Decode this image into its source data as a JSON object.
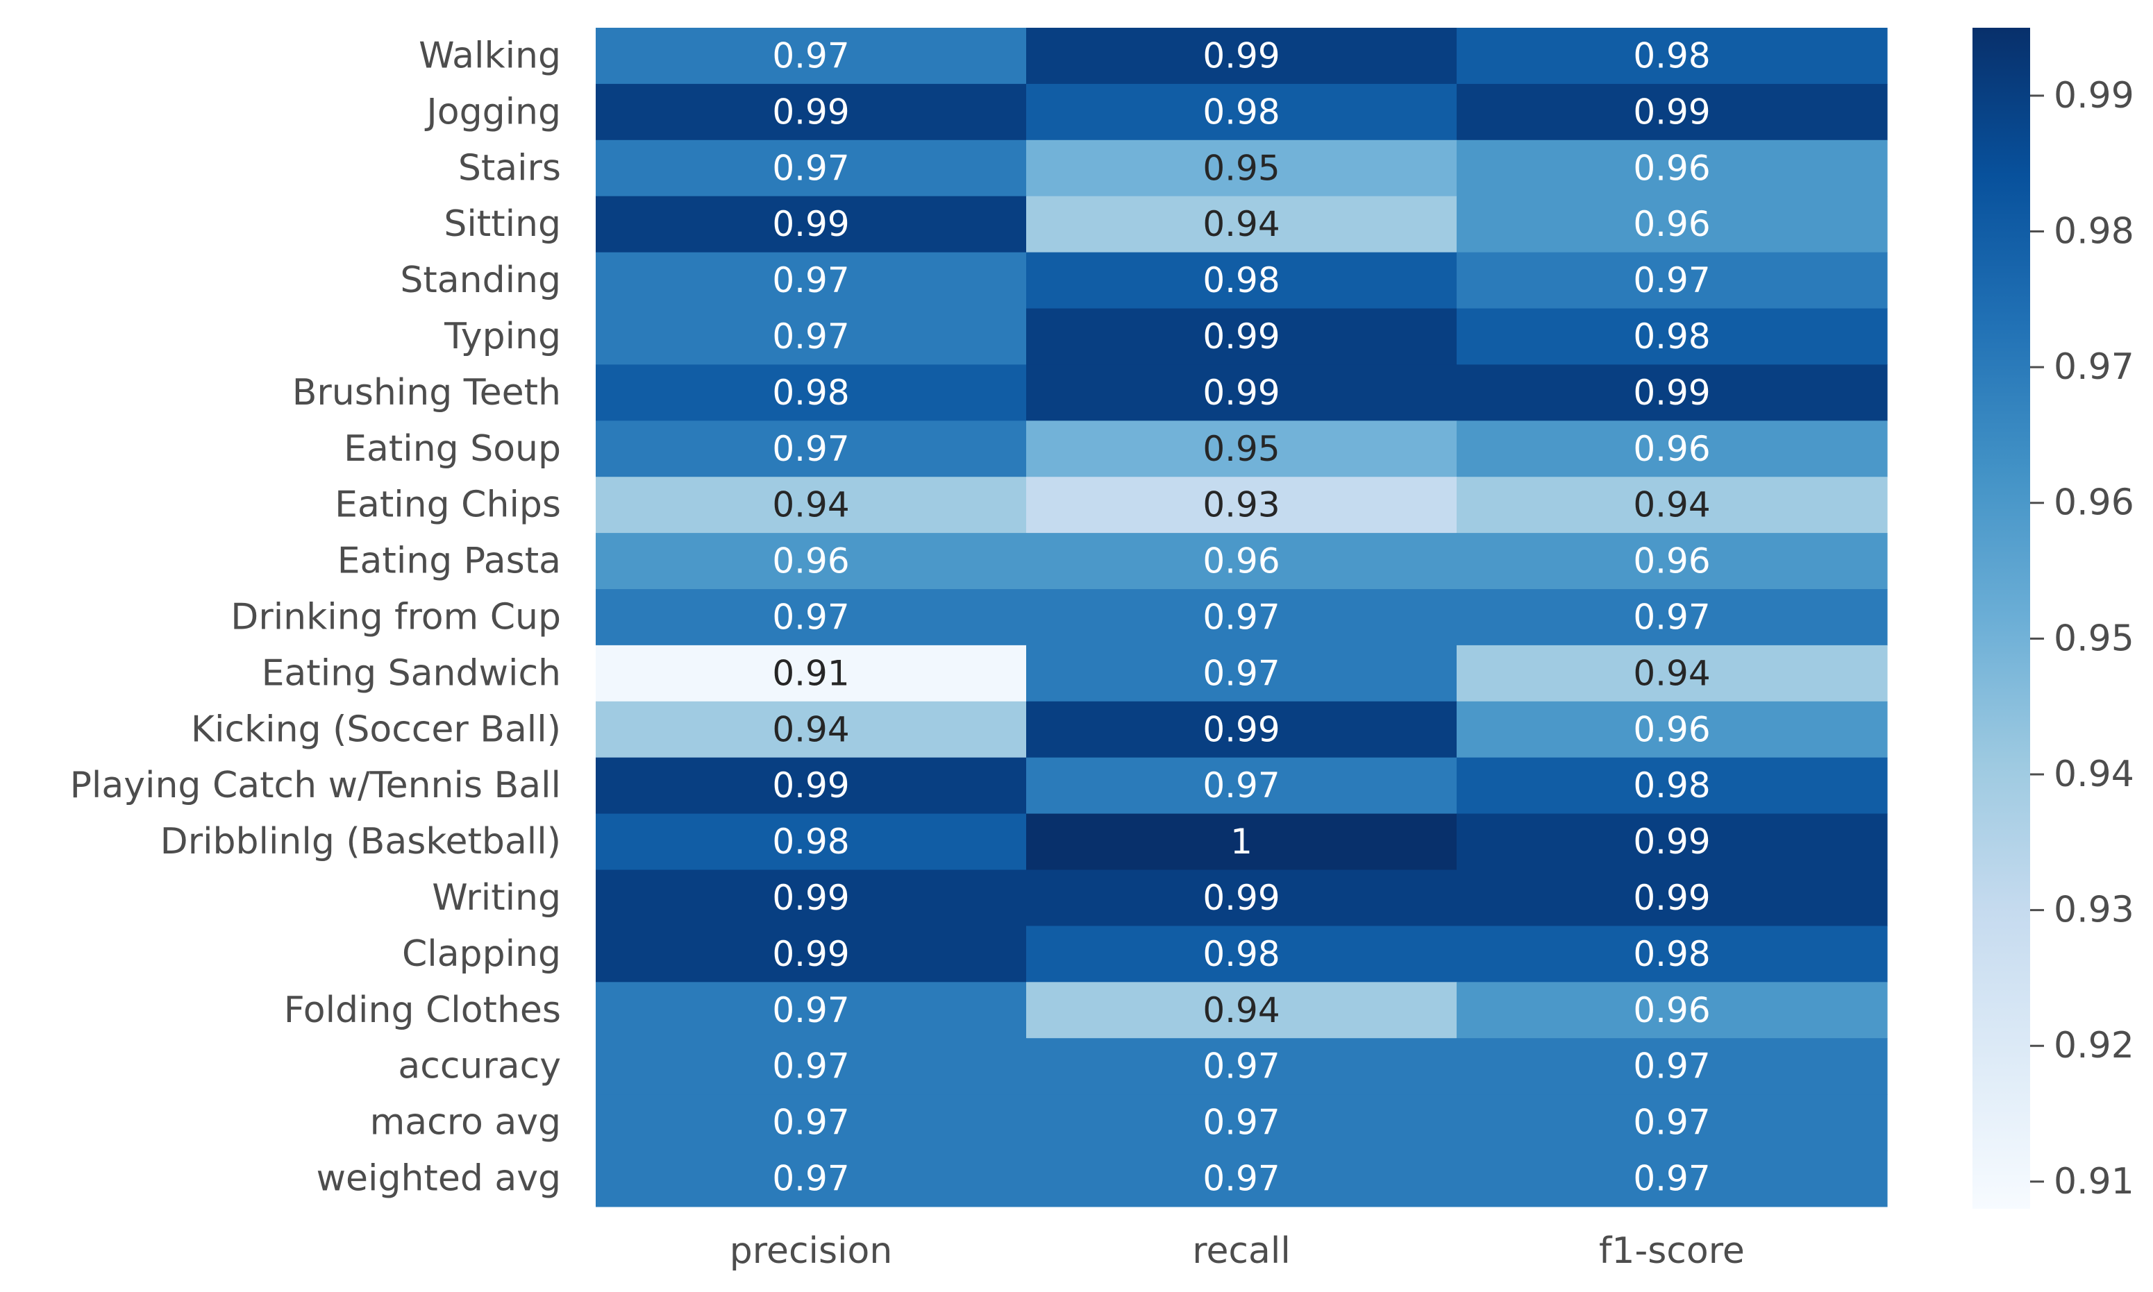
{
  "chart_data": {
    "type": "heatmap",
    "title": "",
    "xlabel": "",
    "ylabel": "",
    "columns": [
      "precision",
      "recall",
      "f1-score"
    ],
    "rows": [
      "Walking",
      "Jogging",
      "Stairs",
      "Sitting",
      "Standing",
      "Typing",
      "Brushing Teeth",
      "Eating Soup",
      "Eating Chips",
      "Eating Pasta",
      "Drinking from Cup",
      "Eating Sandwich",
      "Kicking (Soccer Ball)",
      "Playing Catch w/Tennis Ball",
      "Dribblinlg (Basketball)",
      "Writing",
      "Clapping",
      "Folding Clothes",
      "accuracy",
      "macro avg",
      "weighted avg"
    ],
    "values": [
      [
        0.97,
        0.99,
        0.98
      ],
      [
        0.99,
        0.98,
        0.99
      ],
      [
        0.97,
        0.95,
        0.96
      ],
      [
        0.99,
        0.94,
        0.96
      ],
      [
        0.97,
        0.98,
        0.97
      ],
      [
        0.97,
        0.99,
        0.98
      ],
      [
        0.98,
        0.99,
        0.99
      ],
      [
        0.97,
        0.95,
        0.96
      ],
      [
        0.94,
        0.93,
        0.94
      ],
      [
        0.96,
        0.96,
        0.96
      ],
      [
        0.97,
        0.97,
        0.97
      ],
      [
        0.91,
        0.97,
        0.94
      ],
      [
        0.94,
        0.99,
        0.96
      ],
      [
        0.99,
        0.97,
        0.98
      ],
      [
        0.98,
        1.0,
        0.99
      ],
      [
        0.99,
        0.99,
        0.99
      ],
      [
        0.99,
        0.98,
        0.98
      ],
      [
        0.97,
        0.94,
        0.96
      ],
      [
        0.97,
        0.97,
        0.97
      ],
      [
        0.97,
        0.97,
        0.97
      ],
      [
        0.97,
        0.97,
        0.97
      ]
    ],
    "annotations": [
      [
        "0.97",
        "0.99",
        "0.98"
      ],
      [
        "0.99",
        "0.98",
        "0.99"
      ],
      [
        "0.97",
        "0.95",
        "0.96"
      ],
      [
        "0.99",
        "0.94",
        "0.96"
      ],
      [
        "0.97",
        "0.98",
        "0.97"
      ],
      [
        "0.97",
        "0.99",
        "0.98"
      ],
      [
        "0.98",
        "0.99",
        "0.99"
      ],
      [
        "0.97",
        "0.95",
        "0.96"
      ],
      [
        "0.94",
        "0.93",
        "0.94"
      ],
      [
        "0.96",
        "0.96",
        "0.96"
      ],
      [
        "0.97",
        "0.97",
        "0.97"
      ],
      [
        "0.91",
        "0.97",
        "0.94"
      ],
      [
        "0.94",
        "0.99",
        "0.96"
      ],
      [
        "0.99",
        "0.97",
        "0.98"
      ],
      [
        "0.98",
        "1",
        "0.99"
      ],
      [
        "0.99",
        "0.99",
        "0.99"
      ],
      [
        "0.99",
        "0.98",
        "0.98"
      ],
      [
        "0.97",
        "0.94",
        "0.96"
      ],
      [
        "0.97",
        "0.97",
        "0.97"
      ],
      [
        "0.97",
        "0.97",
        "0.97"
      ],
      [
        "0.97",
        "0.97",
        "0.97"
      ]
    ],
    "colormap": "Blues",
    "vmin": 0.908,
    "vmax": 0.995,
    "colorbar": {
      "ticks": [
        0.99,
        0.98,
        0.97,
        0.96,
        0.95,
        0.94,
        0.93,
        0.92,
        0.91
      ],
      "tick_labels": [
        "0.99",
        "0.98",
        "0.97",
        "0.96",
        "0.95",
        "0.94",
        "0.93",
        "0.92",
        "0.91"
      ]
    },
    "colormap_stops": [
      "#f7fbff",
      "#deebf7",
      "#c6dbef",
      "#9ecae1",
      "#6baed6",
      "#4292c6",
      "#2171b5",
      "#08519c",
      "#08306b"
    ],
    "light_text_color": "#ffffff",
    "dark_text_color": "#262626"
  }
}
